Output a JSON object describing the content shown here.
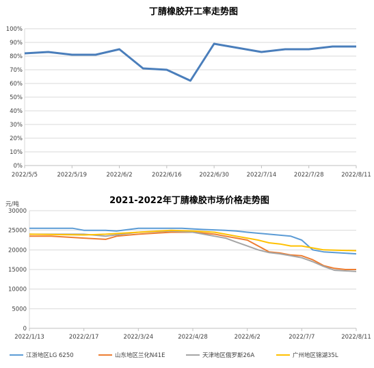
{
  "chart_data": [
    {
      "type": "line",
      "title": "丁腈橡胶开工率走势图",
      "xlabel": "",
      "ylabel": "",
      "ylim": [
        0,
        100
      ],
      "y_ticks": [
        "0%",
        "10%",
        "20%",
        "30%",
        "40%",
        "50%",
        "60%",
        "70%",
        "80%",
        "90%",
        "100%"
      ],
      "x_ticks": [
        "2022/5/5",
        "2022/5/19",
        "2022/6/2",
        "2022/6/16",
        "2022/6/30",
        "2022/7/14",
        "2022/7/28",
        "2022/8/11"
      ],
      "x": [
        "2022/5/5",
        "2022/5/12",
        "2022/5/19",
        "2022/5/26",
        "2022/6/2",
        "2022/6/9",
        "2022/6/16",
        "2022/6/23",
        "2022/6/30",
        "2022/7/7",
        "2022/7/14",
        "2022/7/21",
        "2022/7/28",
        "2022/8/4",
        "2022/8/11"
      ],
      "grid": true,
      "legend": "none",
      "series": [
        {
          "color": "#4a7ebb",
          "values": [
            82,
            83,
            81,
            81,
            85,
            71,
            70,
            62,
            89,
            86,
            83,
            85,
            85,
            87,
            87
          ]
        }
      ]
    },
    {
      "type": "line",
      "title": "2021-2022年丁腈橡胶市场价格走势图",
      "unit_label": "元/吨",
      "xlabel": "",
      "ylabel": "元/吨",
      "ylim": [
        0,
        30000
      ],
      "y_ticks": [
        "0",
        "5000",
        "10000",
        "15000",
        "20000",
        "25000",
        "30000"
      ],
      "x_ticks": [
        "2022/1/13",
        "2022/2/17",
        "2022/3/24",
        "2022/4/28",
        "2022/6/2",
        "2022/7/7",
        "2022/8/11"
      ],
      "grid": true,
      "legend": "bottom",
      "series": [
        {
          "name": "江浙地区LG 6250",
          "color": "#5b9bd5",
          "x": [
            "2022/1/13",
            "2022/2/10",
            "2022/2/17",
            "2022/3/3",
            "2022/3/10",
            "2022/3/24",
            "2022/4/7",
            "2022/4/21",
            "2022/5/5",
            "2022/5/19",
            "2022/5/26",
            "2022/6/2",
            "2022/6/16",
            "2022/6/30",
            "2022/7/7",
            "2022/7/14",
            "2022/7/21",
            "2022/8/11"
          ],
          "values": [
            25500,
            25500,
            25000,
            25000,
            24800,
            25500,
            25500,
            25500,
            25200,
            25000,
            24800,
            24500,
            24000,
            23500,
            22500,
            20000,
            19500,
            19000
          ]
        },
        {
          "name": "山东地区兰化N41E",
          "color": "#ed7d31",
          "x": [
            "2022/1/13",
            "2022/1/27",
            "2022/2/17",
            "2022/3/3",
            "2022/3/10",
            "2022/3/24",
            "2022/4/14",
            "2022/4/28",
            "2022/5/12",
            "2022/5/19",
            "2022/5/26",
            "2022/6/2",
            "2022/6/9",
            "2022/6/16",
            "2022/6/23",
            "2022/6/30",
            "2022/7/7",
            "2022/7/14",
            "2022/7/21",
            "2022/7/28",
            "2022/8/4",
            "2022/8/11"
          ],
          "values": [
            23500,
            23500,
            23000,
            22700,
            23500,
            24000,
            24500,
            24500,
            24000,
            23500,
            23000,
            22500,
            21000,
            19500,
            19200,
            18700,
            18500,
            17500,
            16000,
            15300,
            15000,
            15000
          ]
        },
        {
          "name": "天津地区俄罗斯26A",
          "color": "#a5a5a5",
          "x": [
            "2022/1/13",
            "2022/2/17",
            "2022/3/3",
            "2022/3/24",
            "2022/4/14",
            "2022/4/28",
            "2022/5/12",
            "2022/5/19",
            "2022/5/26",
            "2022/6/2",
            "2022/6/9",
            "2022/6/16",
            "2022/6/23",
            "2022/6/30",
            "2022/7/7",
            "2022/7/14",
            "2022/7/21",
            "2022/7/28",
            "2022/8/11"
          ],
          "values": [
            24000,
            24000,
            23500,
            24500,
            24800,
            24500,
            23500,
            23000,
            22000,
            21000,
            20000,
            19300,
            19000,
            18500,
            18000,
            17000,
            15800,
            14800,
            14500
          ]
        },
        {
          "name": "广州地区锦湖35L",
          "color": "#ffc000",
          "x": [
            "2022/1/13",
            "2022/2/17",
            "2022/3/3",
            "2022/3/24",
            "2022/4/14",
            "2022/4/28",
            "2022/5/12",
            "2022/5/19",
            "2022/5/26",
            "2022/6/2",
            "2022/6/9",
            "2022/6/16",
            "2022/6/23",
            "2022/6/30",
            "2022/7/7",
            "2022/7/14",
            "2022/7/21",
            "2022/8/11"
          ],
          "values": [
            24000,
            23800,
            24000,
            24500,
            25000,
            24800,
            24500,
            24000,
            23500,
            23000,
            22500,
            21800,
            21500,
            21000,
            21000,
            20500,
            20000,
            19800
          ]
        }
      ]
    }
  ]
}
